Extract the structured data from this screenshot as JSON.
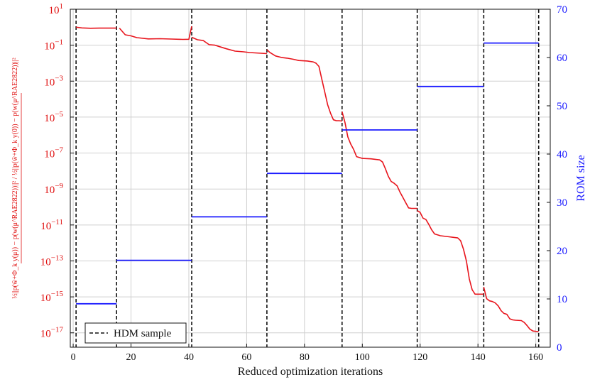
{
  "chart_data": {
    "type": "line",
    "xlabel": "Reduced optimization iterations",
    "ylabel_left": "½||p(w̄+Φ_k y(μ)) − p(w(μ^RAE2822))||² / ½||p(w̄+Φ_k y(0)) − p(w(μ^RAE2822))||²",
    "ylabel_right": "ROM size",
    "xlim": [
      -1,
      165
    ],
    "ylim_left_log10": [
      -17.8,
      1
    ],
    "ylim_right": [
      0,
      70
    ],
    "yscale_left": "log",
    "grid": true,
    "legend": {
      "position": "bottom-left",
      "entries": [
        "HDM sample"
      ]
    },
    "x_ticks": [
      "0",
      "20",
      "40",
      "60",
      "80",
      "100",
      "120",
      "140",
      "160"
    ],
    "x_tick_values": [
      0,
      20,
      40,
      60,
      80,
      100,
      120,
      140,
      160
    ],
    "y_left_ticks": [
      {
        "exp": 1,
        "label": "10",
        "sup": "1"
      },
      {
        "exp": -1,
        "label": "10",
        "sup": "−1"
      },
      {
        "exp": -3,
        "label": "10",
        "sup": "−3"
      },
      {
        "exp": -5,
        "label": "10",
        "sup": "−5"
      },
      {
        "exp": -7,
        "label": "10",
        "sup": "−7"
      },
      {
        "exp": -9,
        "label": "10",
        "sup": "−9"
      },
      {
        "exp": -11,
        "label": "10",
        "sup": "−11"
      },
      {
        "exp": -13,
        "label": "10",
        "sup": "−13"
      },
      {
        "exp": -15,
        "label": "10",
        "sup": "−15"
      },
      {
        "exp": -17,
        "label": "10",
        "sup": "−17"
      }
    ],
    "y_right_ticks": [
      0,
      10,
      20,
      30,
      40,
      50,
      60,
      70
    ],
    "hdm_samples_x": [
      1,
      15,
      41,
      67,
      93,
      119,
      142,
      161
    ],
    "series": [
      {
        "axis": "left",
        "color": "#e8141c",
        "log10_segments": [
          [
            [
              1,
              0
            ],
            [
              3,
              -0.04
            ],
            [
              6,
              -0.06
            ],
            [
              9,
              -0.05
            ],
            [
              12,
              -0.05
            ],
            [
              15,
              -0.05
            ]
          ],
          [
            [
              16,
              -0.05
            ],
            [
              18,
              -0.42
            ],
            [
              20,
              -0.48
            ],
            [
              22,
              -0.58
            ],
            [
              26,
              -0.65
            ],
            [
              30,
              -0.64
            ],
            [
              34,
              -0.66
            ],
            [
              38,
              -0.68
            ],
            [
              40,
              -0.67
            ],
            [
              41,
              0.05
            ]
          ],
          [
            [
              41,
              -0.56
            ],
            [
              43,
              -0.7
            ],
            [
              45,
              -0.74
            ],
            [
              47,
              -0.97
            ],
            [
              49,
              -1.0
            ],
            [
              51,
              -1.1
            ],
            [
              53,
              -1.2
            ],
            [
              56,
              -1.33
            ],
            [
              59,
              -1.37
            ],
            [
              61,
              -1.41
            ],
            [
              63,
              -1.43
            ],
            [
              67,
              -1.47
            ]
          ],
          [
            [
              67,
              -1.25
            ],
            [
              68,
              -1.4
            ],
            [
              70,
              -1.6
            ],
            [
              72,
              -1.68
            ],
            [
              74,
              -1.72
            ],
            [
              76,
              -1.78
            ],
            [
              78,
              -1.85
            ],
            [
              81,
              -1.88
            ],
            [
              83,
              -1.93
            ],
            [
              84,
              -2.0
            ],
            [
              85,
              -2.18
            ],
            [
              86,
              -2.9
            ],
            [
              87,
              -3.6
            ],
            [
              88,
              -4.3
            ],
            [
              89,
              -4.78
            ],
            [
              90,
              -5.15
            ],
            [
              91,
              -5.2
            ],
            [
              92,
              -5.2
            ],
            [
              93,
              -5.22
            ]
          ],
          [
            [
              93,
              -4.7
            ],
            [
              94,
              -5.3
            ],
            [
              95,
              -6.1
            ],
            [
              96,
              -6.5
            ],
            [
              97,
              -6.8
            ],
            [
              98,
              -7.2
            ],
            [
              100,
              -7.3
            ],
            [
              103,
              -7.32
            ],
            [
              106,
              -7.38
            ],
            [
              107,
              -7.5
            ],
            [
              108,
              -7.88
            ],
            [
              109,
              -8.3
            ],
            [
              110,
              -8.58
            ],
            [
              111,
              -8.68
            ],
            [
              112,
              -8.82
            ],
            [
              113,
              -9.16
            ],
            [
              114,
              -9.46
            ],
            [
              115,
              -9.76
            ],
            [
              116,
              -10.05
            ],
            [
              117,
              -10.08
            ],
            [
              119,
              -10.08
            ]
          ],
          [
            [
              119,
              -10.2
            ],
            [
              120,
              -10.3
            ],
            [
              121,
              -10.62
            ],
            [
              122,
              -10.7
            ],
            [
              123,
              -10.97
            ],
            [
              124,
              -11.27
            ],
            [
              125,
              -11.5
            ],
            [
              127,
              -11.6
            ],
            [
              130,
              -11.66
            ],
            [
              133,
              -11.72
            ],
            [
              134,
              -11.88
            ],
            [
              135,
              -12.35
            ],
            [
              136,
              -13.0
            ],
            [
              137,
              -14.0
            ],
            [
              138,
              -14.6
            ],
            [
              139,
              -14.85
            ],
            [
              142,
              -14.85
            ]
          ],
          [
            [
              142,
              -14.45
            ],
            [
              143,
              -15.1
            ],
            [
              144,
              -15.22
            ],
            [
              145,
              -15.26
            ],
            [
              146,
              -15.34
            ],
            [
              147,
              -15.5
            ],
            [
              148,
              -15.77
            ],
            [
              149,
              -15.92
            ],
            [
              150,
              -15.97
            ],
            [
              151,
              -16.22
            ],
            [
              152,
              -16.28
            ],
            [
              153,
              -16.3
            ],
            [
              155,
              -16.32
            ],
            [
              156,
              -16.42
            ],
            [
              157,
              -16.6
            ],
            [
              158,
              -16.8
            ],
            [
              159,
              -16.9
            ],
            [
              160,
              -16.92
            ],
            [
              161,
              -16.93
            ]
          ]
        ]
      },
      {
        "axis": "right",
        "color": "#1a1aff",
        "steps": [
          {
            "x0": 1,
            "x1": 15,
            "y": 9
          },
          {
            "x0": 15,
            "x1": 41,
            "y": 18
          },
          {
            "x0": 41,
            "x1": 67,
            "y": 27
          },
          {
            "x0": 67,
            "x1": 93,
            "y": 36
          },
          {
            "x0": 93,
            "x1": 119,
            "y": 45
          },
          {
            "x0": 119,
            "x1": 142,
            "y": 54
          },
          {
            "x0": 142,
            "x1": 161,
            "y": 63
          }
        ]
      }
    ]
  }
}
